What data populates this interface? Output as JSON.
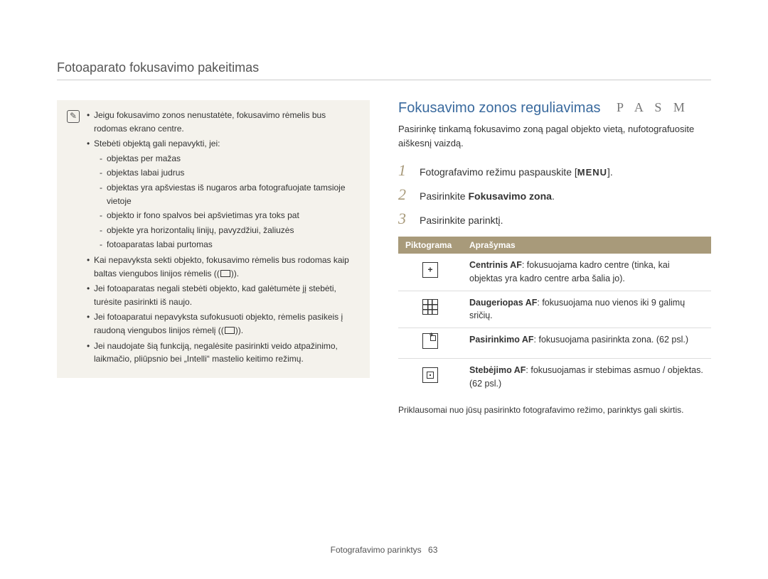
{
  "page_title": "Fotoaparato fokusavimo pakeitimas",
  "note": {
    "items": [
      {
        "text": "Jeigu fokusavimo zonos nenustatėte, fokusavimo rėmelis bus rodomas ekrano centre."
      },
      {
        "text": "Stebėti objektą gali nepavykti, jei:",
        "sub": [
          "objektas per mažas",
          "objektas labai judrus",
          "objektas yra apšviestas iš nugaros arba fotografuojate tamsioje vietoje",
          "objekto ir fono spalvos bei apšvietimas yra toks pat",
          "objekte yra horizontalių linijų, pavyzdžiui, žaliuzės",
          "fotoaparatas labai purtomas"
        ]
      },
      {
        "text_html": "Kai nepavyksta sekti objekto, fokusavimo rėmelis bus rodomas kaip baltas viengubos linijos rėmelis (FRAME)."
      },
      {
        "text": "Jei fotoaparatas negali stebėti objekto, kad galėtumėte jį stebėti, turėsite pasirinkti iš naujo."
      },
      {
        "text_html": "Jei fotoaparatui nepavyksta sufokusuoti objekto, rėmelis pasikeis į raudoną viengubos linijos rėmelį (FRAME)."
      },
      {
        "text": "Jei naudojate šią funkciją, negalėsite pasirinkti veido atpažinimo, laikmačio, pliūpsnio bei „Intelli“ mastelio keitimo režimų."
      }
    ]
  },
  "section": {
    "heading": "Fokusavimo zonos reguliavimas",
    "modes": "P A S M",
    "intro": "Pasirinkę tinkamą fokusavimo zoną pagal objekto vietą, nufotografuosite aiškesnį vaizdą.",
    "steps": [
      {
        "n": "1",
        "pre": "Fotografavimo režimu paspauskite [",
        "menu": "MENU",
        "post": "]."
      },
      {
        "n": "2",
        "pre": "Pasirinkite ",
        "bold": "Fokusavimo zona",
        "post": "."
      },
      {
        "n": "3",
        "pre": "Pasirinkite parinktį."
      }
    ],
    "table": {
      "headers": [
        "Piktograma",
        "Aprašymas"
      ],
      "rows": [
        {
          "icon": "center-af",
          "bold": "Centrinis AF",
          "text": ": fokusuojama kadro centre (tinka, kai objektas yra kadro centre arba šalia jo)."
        },
        {
          "icon": "multi-af",
          "bold": "Daugeriopas AF",
          "text": ": fokusuojama nuo vienos iki 9 galimų sričių."
        },
        {
          "icon": "select-af",
          "bold": "Pasirinkimo AF",
          "text": ": fokusuojama pasirinkta zona. (62 psl.)"
        },
        {
          "icon": "track-af",
          "bold": "Stebėjimo AF",
          "text": ": fokusuojamas ir stebimas asmuo / objektas. (62 psl.)"
        }
      ]
    },
    "footnote": "Priklausomai nuo jūsų pasirinkto fotografavimo režimo, parinktys gali skirtis."
  },
  "footer": {
    "label": "Fotografavimo parinktys",
    "page": "63"
  }
}
